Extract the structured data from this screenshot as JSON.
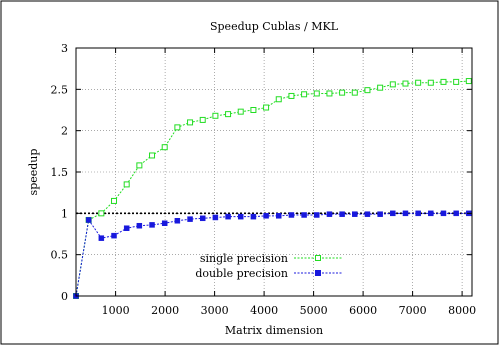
{
  "chart_data": {
    "type": "line",
    "title": "Speedup Cublas / MKL",
    "xlabel": "Matrix dimension",
    "ylabel": "speedup",
    "xlim": [
      200,
      8200
    ],
    "ylim": [
      0,
      3
    ],
    "xticks": [
      1000,
      2000,
      3000,
      4000,
      5000,
      6000,
      7000,
      8000
    ],
    "yticks": [
      0,
      0.5,
      1,
      1.5,
      2,
      2.5,
      3
    ],
    "ytick_labels": [
      "0",
      "0.5",
      "1",
      "1.5",
      "2",
      "2.5",
      "3"
    ],
    "grid": true,
    "legend_position": "bottom-right",
    "reference_line": {
      "y": 1
    },
    "series": [
      {
        "name": "single precision",
        "color": "#22dd22",
        "marker": "hollow-square",
        "x": [
          200,
          456,
          712,
          968,
          1224,
          1480,
          1736,
          1992,
          2248,
          2504,
          2760,
          3016,
          3272,
          3528,
          3784,
          4040,
          4296,
          4552,
          4808,
          5064,
          5320,
          5576,
          5832,
          6088,
          6344,
          6600,
          6856,
          7112,
          7368,
          7624,
          7880,
          8136
        ],
        "values": [
          0,
          0.92,
          1.0,
          1.15,
          1.35,
          1.58,
          1.7,
          1.8,
          2.04,
          2.1,
          2.13,
          2.18,
          2.2,
          2.23,
          2.25,
          2.28,
          2.38,
          2.42,
          2.44,
          2.45,
          2.45,
          2.46,
          2.46,
          2.49,
          2.52,
          2.56,
          2.57,
          2.58,
          2.58,
          2.59,
          2.59,
          2.6
        ]
      },
      {
        "name": "double precision",
        "color": "#1818dd",
        "marker": "filled-square",
        "x": [
          200,
          456,
          712,
          968,
          1224,
          1480,
          1736,
          1992,
          2248,
          2504,
          2760,
          3016,
          3272,
          3528,
          3784,
          4040,
          4296,
          4552,
          4808,
          5064,
          5320,
          5576,
          5832,
          6088,
          6344,
          6600,
          6856,
          7112,
          7368,
          7624,
          7880,
          8136
        ],
        "values": [
          0,
          0.92,
          0.7,
          0.73,
          0.82,
          0.85,
          0.86,
          0.88,
          0.91,
          0.93,
          0.94,
          0.95,
          0.96,
          0.96,
          0.96,
          0.97,
          0.97,
          0.98,
          0.98,
          0.98,
          0.99,
          0.99,
          0.99,
          0.99,
          0.99,
          1.0,
          1.0,
          1.0,
          1.0,
          1.0,
          1.0,
          1.0
        ]
      }
    ]
  }
}
